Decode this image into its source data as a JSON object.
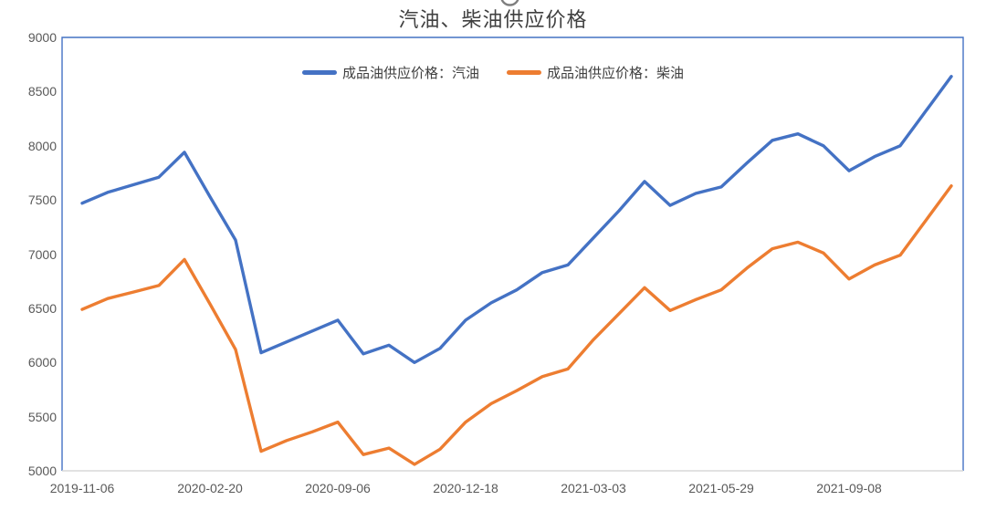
{
  "chart_data": {
    "type": "line",
    "title": "汽油、柴油供应价格",
    "title_color": "#404040",
    "xlabel": "",
    "ylabel": "",
    "ylim": [
      5000,
      9000
    ],
    "y_ticks": [
      5000,
      5500,
      6000,
      6500,
      7000,
      7500,
      8000,
      8500,
      9000
    ],
    "x_tick_labels": [
      "2019-11-06",
      "2020-02-20",
      "2020-09-06",
      "2020-12-18",
      "2021-03-03",
      "2021-05-29",
      "2021-09-08"
    ],
    "x_tick_point_indices": [
      0,
      5,
      10,
      15,
      20,
      25,
      30
    ],
    "n_points": 35,
    "grid": false,
    "legend_position": "top-center",
    "axis_text_color": "#595959",
    "plot_border_color": "#4472C4",
    "bottom_axis_color": "#D9D9D9",
    "series": [
      {
        "name": "成品油供应价格：汽油",
        "color": "#4472C4",
        "values": [
          7470,
          7570,
          7640,
          7710,
          7940,
          7530,
          7130,
          6090,
          6190,
          6290,
          6390,
          6080,
          6160,
          6000,
          6130,
          6390,
          6550,
          6670,
          6830,
          6900,
          7150,
          7400,
          7670,
          7450,
          7560,
          7620,
          7840,
          8050,
          8110,
          8000,
          7770,
          7900,
          8000,
          8320,
          8640
        ]
      },
      {
        "name": "成品油供应价格：柴油",
        "color": "#ED7D31",
        "values": [
          6490,
          6590,
          6650,
          6710,
          6950,
          6540,
          6120,
          5180,
          5280,
          5360,
          5450,
          5150,
          5210,
          5060,
          5200,
          5450,
          5620,
          5740,
          5870,
          5940,
          6210,
          6450,
          6690,
          6480,
          6580,
          6670,
          6870,
          7050,
          7110,
          7010,
          6770,
          6900,
          6990,
          7310,
          7630
        ]
      }
    ]
  }
}
